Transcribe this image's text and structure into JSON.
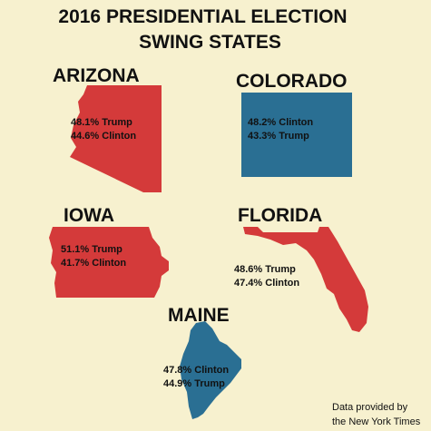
{
  "title": {
    "line1": "2016 PRESIDENTIAL ELECTION",
    "line2": "SWING STATES"
  },
  "colors": {
    "background": "#f7f1cf",
    "trump": "#d43a3a",
    "clinton": "#2a6f93"
  },
  "states": {
    "arizona": {
      "name": "ARIZONA",
      "winner": "Trump",
      "line1": "48.1% Trump",
      "line2": "44.6% Clinton"
    },
    "colorado": {
      "name": "COLORADO",
      "winner": "Clinton",
      "line1": "48.2% Clinton",
      "line2": "43.3% Trump"
    },
    "iowa": {
      "name": "IOWA",
      "winner": "Trump",
      "line1": "51.1% Trump",
      "line2": "41.7% Clinton"
    },
    "florida": {
      "name": "FLORIDA",
      "winner": "Trump",
      "line1": "48.6% Trump",
      "line2": "47.4% Clinton"
    },
    "maine": {
      "name": "MAINE",
      "winner": "Clinton",
      "line1": "47.8% Clinton",
      "line2": "44.9% Trump"
    }
  },
  "credit": {
    "line1": "Data provided by",
    "line2": "the New York Times"
  }
}
